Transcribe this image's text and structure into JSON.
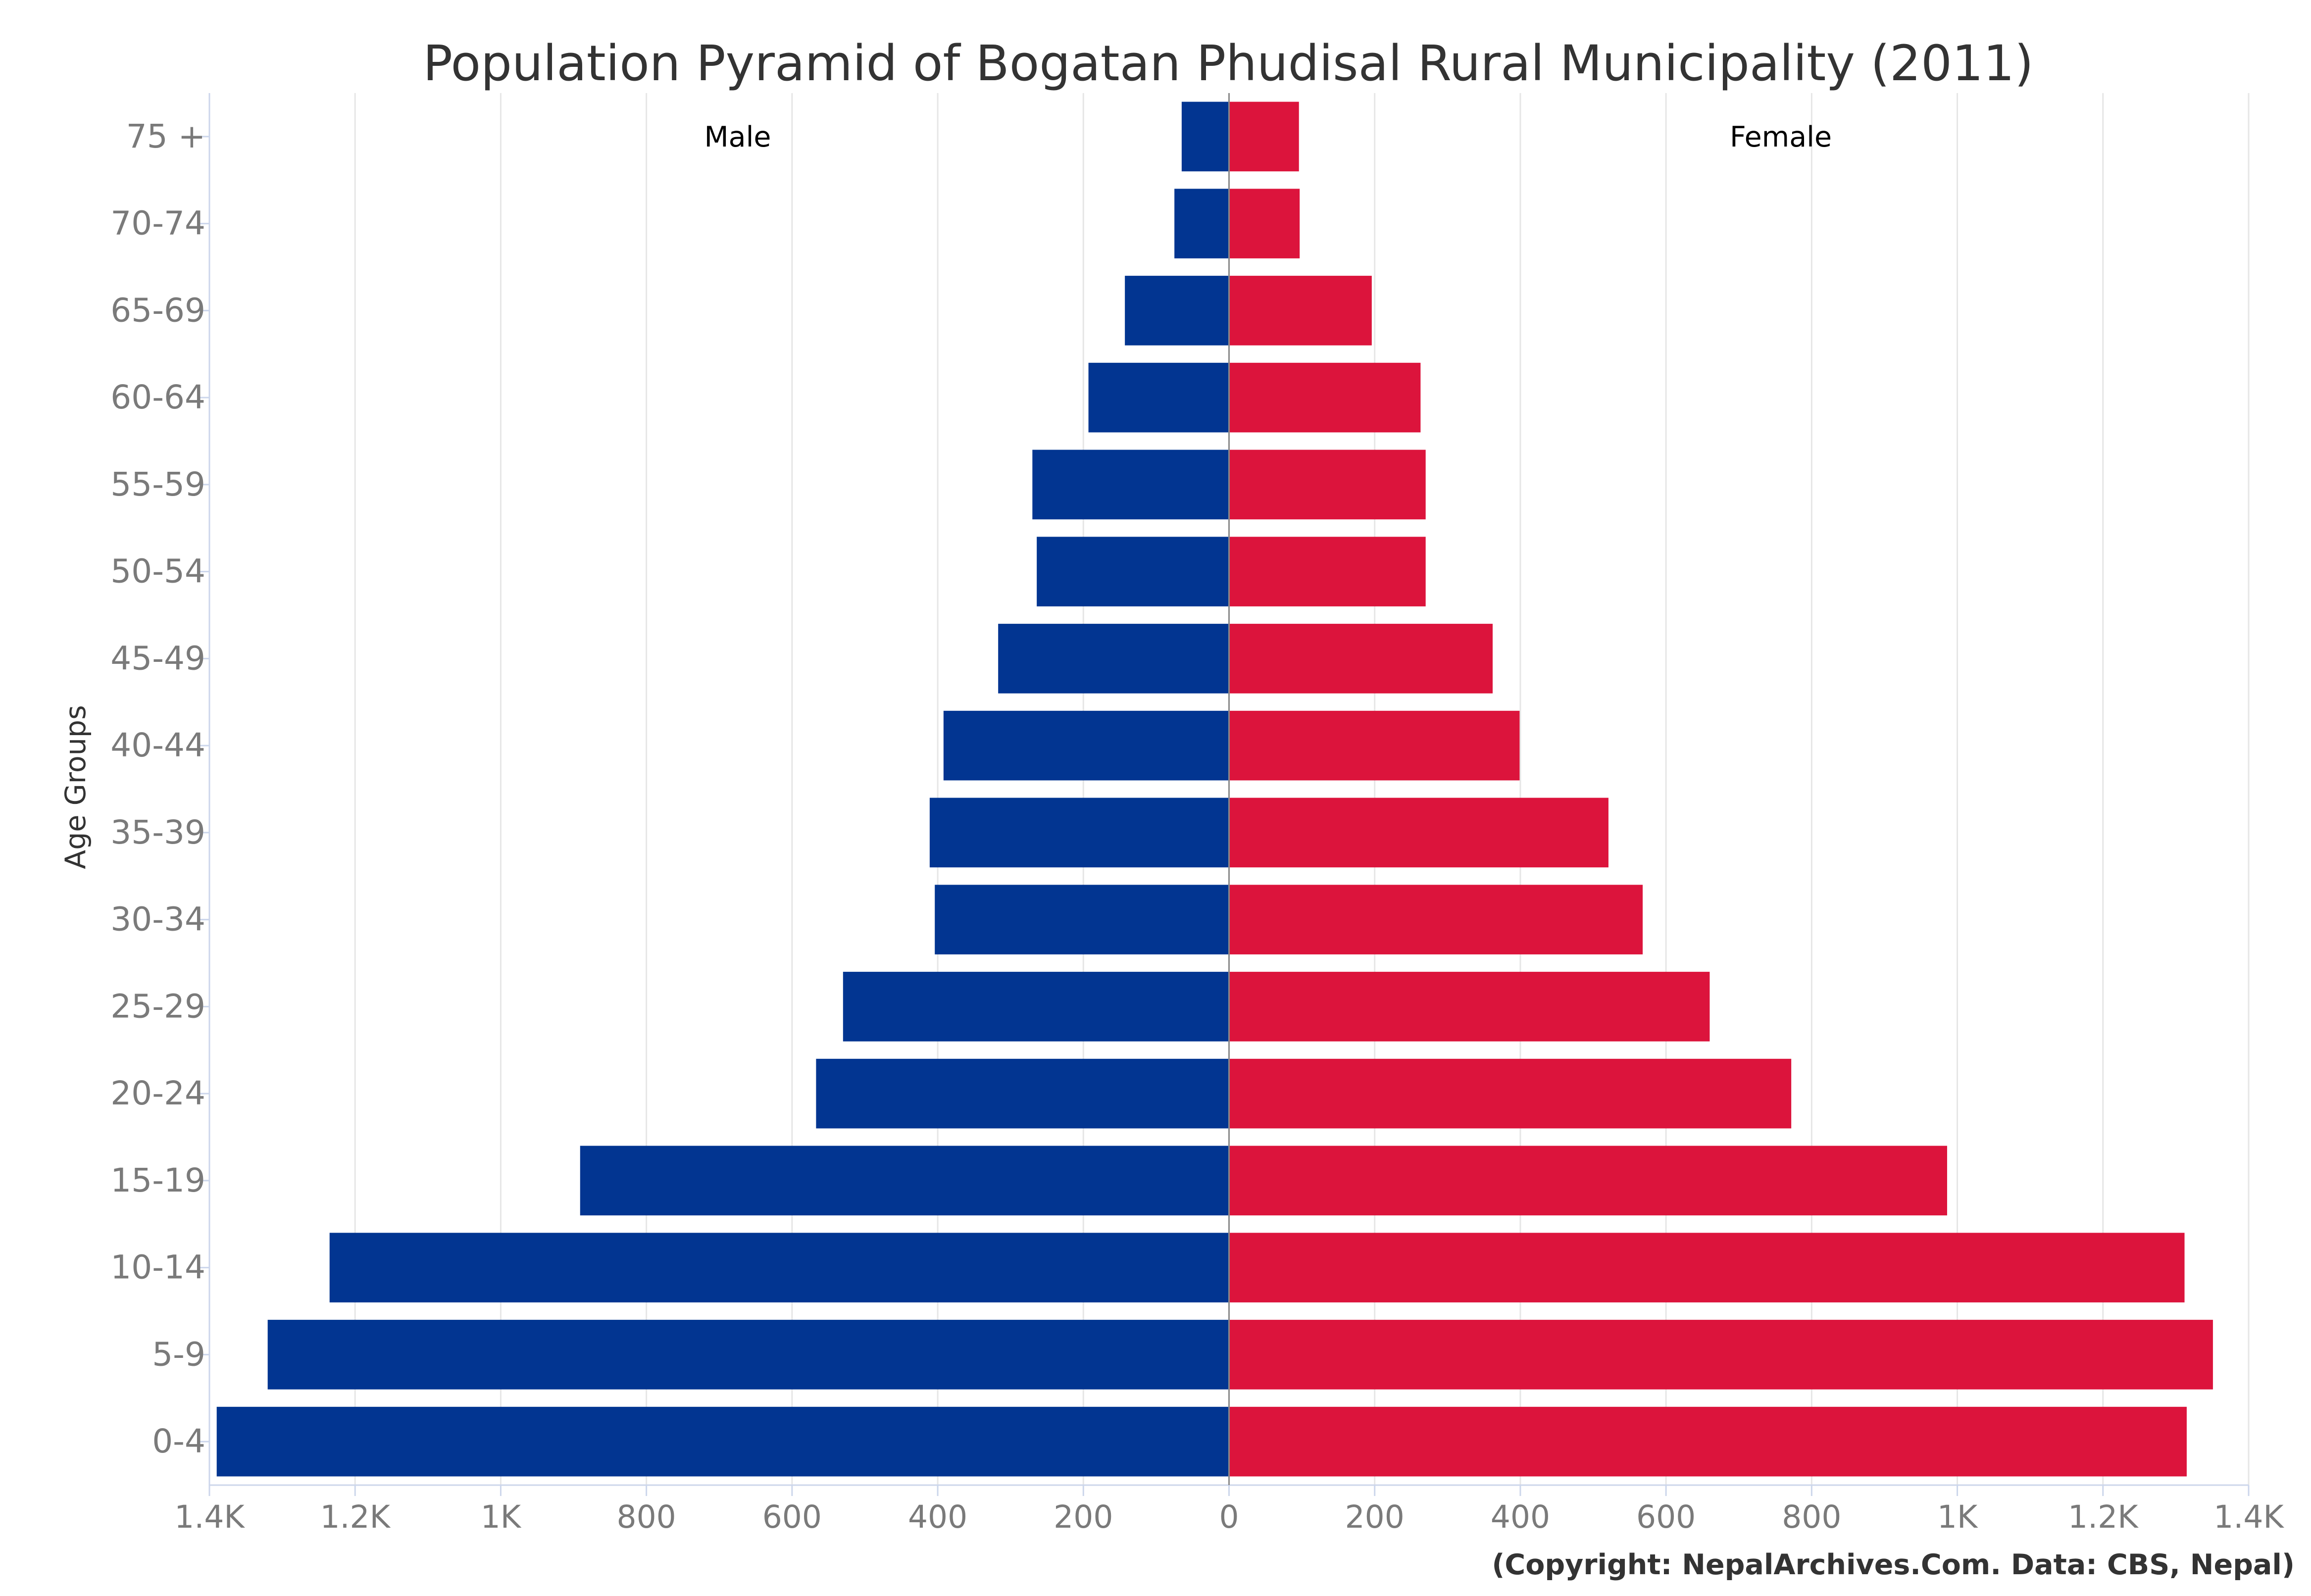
{
  "chart_data": {
    "type": "bar",
    "orientation": "horizontal",
    "title": "Population Pyramid of Bogatan Phudisal Rural Municipality (2011)",
    "ylabel": "Age Groups",
    "categories": [
      "75 +",
      "70-74",
      "65-69",
      "60-64",
      "55-59",
      "50-54",
      "45-49",
      "40-44",
      "35-39",
      "30-34",
      "25-29",
      "20-24",
      "15-19",
      "10-14",
      "5-9",
      "0-4"
    ],
    "series": [
      {
        "name": "Male",
        "color": "#023591",
        "values": [
          65,
          75,
          143,
          193,
          270,
          264,
          317,
          392,
          411,
          404,
          530,
          567,
          891,
          1235,
          1320,
          1390
        ]
      },
      {
        "name": "Female",
        "color": "#dc143c",
        "values": [
          96,
          97,
          196,
          263,
          270,
          270,
          362,
          399,
          521,
          568,
          660,
          772,
          986,
          1312,
          1351,
          1315
        ]
      }
    ],
    "x_ticks": [
      "1.4K",
      "1.2K",
      "1K",
      "800",
      "600",
      "400",
      "200",
      "0",
      "200",
      "400",
      "600",
      "800",
      "1K",
      "1.2K",
      "1.4K"
    ],
    "xlim": [
      -1400,
      1400
    ],
    "grid": true,
    "legend": "none",
    "credit": "(Copyright: NepalArchives.Com. Data: CBS, Nepal)"
  }
}
